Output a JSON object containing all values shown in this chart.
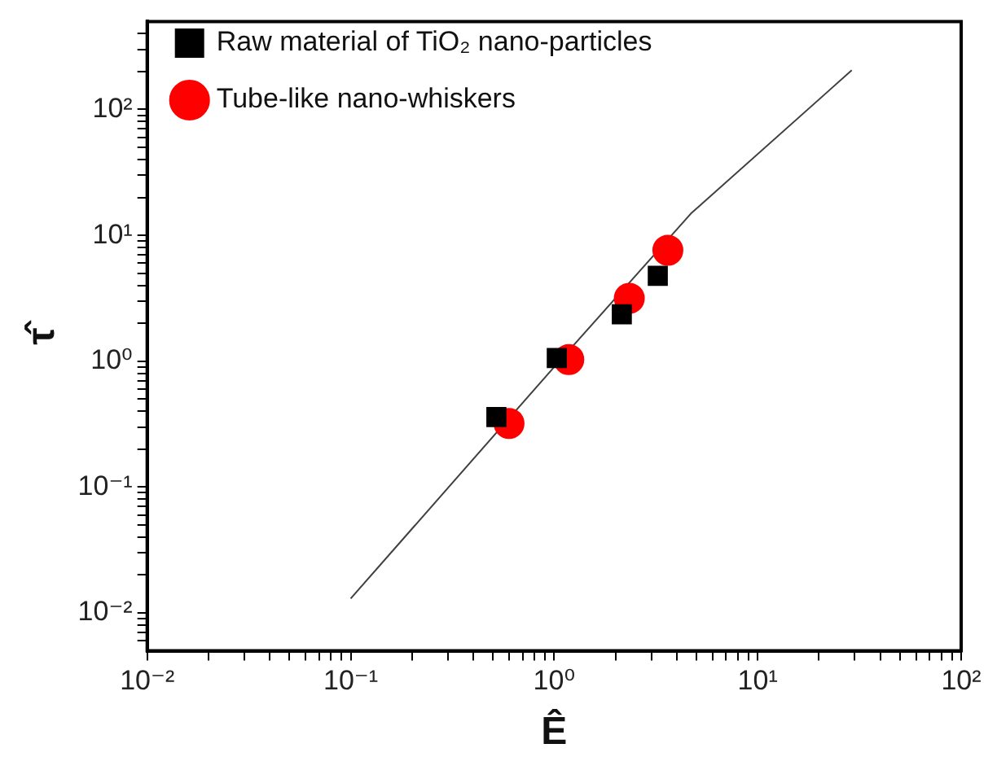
{
  "chart_data": {
    "type": "scatter",
    "xlabel": "Ê",
    "ylabel": "τ̂",
    "log": "xy",
    "grid": false,
    "legend": "top left",
    "xlim": [
      0.01,
      100
    ],
    "ylim": [
      0.005,
      500
    ],
    "xticks": [
      {
        "value": 0.01,
        "label": "10⁻²"
      },
      {
        "value": 0.02,
        "label": null
      },
      {
        "value": 0.03,
        "label": null
      },
      {
        "value": 0.04,
        "label": null
      },
      {
        "value": 0.05,
        "label": null
      },
      {
        "value": 0.06,
        "label": null
      },
      {
        "value": 0.07,
        "label": null
      },
      {
        "value": 0.08,
        "label": null
      },
      {
        "value": 0.09,
        "label": null
      },
      {
        "value": 0.1,
        "label": "10⁻¹"
      },
      {
        "value": 0.2,
        "label": null
      },
      {
        "value": 0.3,
        "label": null
      },
      {
        "value": 0.4,
        "label": null
      },
      {
        "value": 0.5,
        "label": null
      },
      {
        "value": 0.6,
        "label": null
      },
      {
        "value": 0.7,
        "label": null
      },
      {
        "value": 0.8,
        "label": null
      },
      {
        "value": 0.9,
        "label": null
      },
      {
        "value": 1,
        "label": "10⁰"
      },
      {
        "value": 2,
        "label": null
      },
      {
        "value": 3,
        "label": null
      },
      {
        "value": 4,
        "label": null
      },
      {
        "value": 5,
        "label": null
      },
      {
        "value": 6,
        "label": null
      },
      {
        "value": 7,
        "label": null
      },
      {
        "value": 8,
        "label": null
      },
      {
        "value": 9,
        "label": null
      },
      {
        "value": 10,
        "label": "10¹"
      },
      {
        "value": 20,
        "label": null
      },
      {
        "value": 30,
        "label": null
      },
      {
        "value": 40,
        "label": null
      },
      {
        "value": 50,
        "label": null
      },
      {
        "value": 60,
        "label": null
      },
      {
        "value": 70,
        "label": null
      },
      {
        "value": 80,
        "label": null
      },
      {
        "value": 90,
        "label": null
      },
      {
        "value": 100,
        "label": "10²"
      }
    ],
    "yticks": [
      {
        "value": 0.006,
        "label": null
      },
      {
        "value": 0.007,
        "label": null
      },
      {
        "value": 0.008,
        "label": null
      },
      {
        "value": 0.009,
        "label": null
      },
      {
        "value": 0.01,
        "label": "10⁻²"
      },
      {
        "value": 0.02,
        "label": null
      },
      {
        "value": 0.03,
        "label": null
      },
      {
        "value": 0.04,
        "label": null
      },
      {
        "value": 0.05,
        "label": null
      },
      {
        "value": 0.06,
        "label": null
      },
      {
        "value": 0.07,
        "label": null
      },
      {
        "value": 0.08,
        "label": null
      },
      {
        "value": 0.09,
        "label": null
      },
      {
        "value": 0.1,
        "label": "10⁻¹"
      },
      {
        "value": 0.2,
        "label": null
      },
      {
        "value": 0.3,
        "label": null
      },
      {
        "value": 0.4,
        "label": null
      },
      {
        "value": 0.5,
        "label": null
      },
      {
        "value": 0.6,
        "label": null
      },
      {
        "value": 0.7,
        "label": null
      },
      {
        "value": 0.8,
        "label": null
      },
      {
        "value": 0.9,
        "label": null
      },
      {
        "value": 1,
        "label": "10⁰"
      },
      {
        "value": 2,
        "label": null
      },
      {
        "value": 3,
        "label": null
      },
      {
        "value": 4,
        "label": null
      },
      {
        "value": 5,
        "label": null
      },
      {
        "value": 6,
        "label": null
      },
      {
        "value": 7,
        "label": null
      },
      {
        "value": 8,
        "label": null
      },
      {
        "value": 9,
        "label": null
      },
      {
        "value": 10,
        "label": "10¹"
      },
      {
        "value": 20,
        "label": null
      },
      {
        "value": 30,
        "label": null
      },
      {
        "value": 40,
        "label": null
      },
      {
        "value": 50,
        "label": null
      },
      {
        "value": 60,
        "label": null
      },
      {
        "value": 70,
        "label": null
      },
      {
        "value": 80,
        "label": null
      },
      {
        "value": 90,
        "label": null
      },
      {
        "value": 100,
        "label": "10²"
      },
      {
        "value": 200,
        "label": null
      },
      {
        "value": 300,
        "label": null
      },
      {
        "value": 400,
        "label": null
      }
    ],
    "series": [
      {
        "name": "Raw material of TiO₂ nano-particles",
        "color": "#000000",
        "marker": "square",
        "x": [
          0.52,
          1.03,
          2.15,
          3.23
        ],
        "values": [
          0.36,
          1.06,
          2.36,
          4.77
        ]
      },
      {
        "name": "Tube-like nano-whiskers",
        "color": "#ff0000",
        "marker": "circle",
        "x": [
          0.6,
          1.18,
          2.34,
          3.62
        ],
        "values": [
          0.32,
          1.03,
          3.16,
          7.6
        ]
      },
      {
        "type": "line",
        "color": "#404040",
        "marker": "none",
        "x": [
          0.1,
          1,
          4.7,
          29
        ],
        "values": [
          0.013,
          0.9,
          14.9,
          205
        ]
      }
    ]
  }
}
